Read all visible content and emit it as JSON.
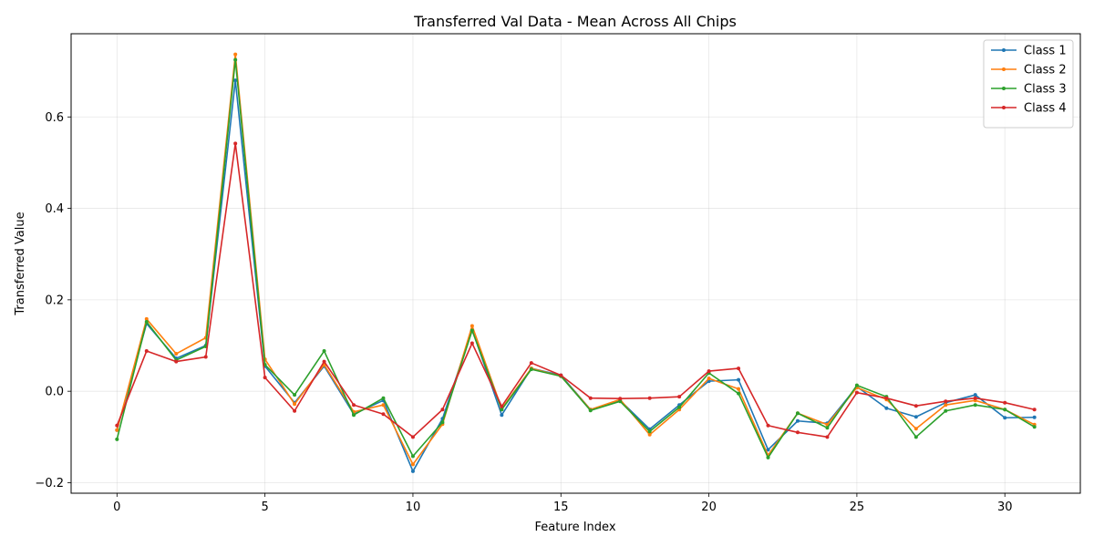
{
  "chart_data": {
    "type": "line",
    "title": "Transferred Val Data - Mean Across All Chips",
    "xlabel": "Feature Index",
    "ylabel": "Transferred Value",
    "xlim": [
      -1.55,
      32.55
    ],
    "ylim": [
      -0.223,
      0.782
    ],
    "xticks": [
      0,
      5,
      10,
      15,
      20,
      25,
      30
    ],
    "yticks": [
      -0.2,
      0.0,
      0.2,
      0.4,
      0.6
    ],
    "ytick_labels": [
      "−0.2",
      "0.0",
      "0.2",
      "0.4",
      "0.6"
    ],
    "grid": true,
    "legend_position": "top-right",
    "x": [
      0,
      1,
      2,
      3,
      4,
      5,
      6,
      7,
      8,
      9,
      10,
      11,
      12,
      13,
      14,
      15,
      16,
      17,
      18,
      19,
      20,
      21,
      22,
      23,
      24,
      25,
      26,
      27,
      28,
      29,
      30,
      31
    ],
    "series": [
      {
        "name": "Class 1",
        "color": "#1f77b4",
        "values": [
          -0.085,
          0.148,
          0.072,
          0.1,
          0.68,
          0.055,
          -0.025,
          0.055,
          -0.05,
          -0.02,
          -0.175,
          -0.06,
          0.135,
          -0.052,
          0.05,
          0.035,
          -0.04,
          -0.02,
          -0.083,
          -0.03,
          0.022,
          0.025,
          -0.128,
          -0.065,
          -0.07,
          0.01,
          -0.037,
          -0.056,
          -0.025,
          -0.008,
          -0.058,
          -0.057
        ]
      },
      {
        "name": "Class 2",
        "color": "#ff7f0e",
        "values": [
          -0.085,
          0.158,
          0.082,
          0.117,
          0.737,
          0.07,
          -0.028,
          0.058,
          -0.045,
          -0.03,
          -0.16,
          -0.072,
          0.143,
          -0.038,
          0.05,
          0.033,
          -0.04,
          -0.018,
          -0.095,
          -0.04,
          0.028,
          0.005,
          -0.14,
          -0.048,
          -0.073,
          0.008,
          -0.018,
          -0.082,
          -0.03,
          -0.02,
          -0.04,
          -0.073
        ]
      },
      {
        "name": "Class 3",
        "color": "#2ca02c",
        "values": [
          -0.105,
          0.152,
          0.068,
          0.098,
          0.725,
          0.058,
          -0.008,
          0.088,
          -0.052,
          -0.015,
          -0.142,
          -0.068,
          0.133,
          -0.04,
          0.048,
          0.033,
          -0.042,
          -0.022,
          -0.088,
          -0.035,
          0.04,
          -0.005,
          -0.145,
          -0.048,
          -0.08,
          0.013,
          -0.012,
          -0.1,
          -0.043,
          -0.03,
          -0.04,
          -0.078
        ]
      },
      {
        "name": "Class 4",
        "color": "#d62728",
        "values": [
          -0.075,
          0.088,
          0.065,
          0.075,
          0.542,
          0.03,
          -0.043,
          0.065,
          -0.03,
          -0.05,
          -0.1,
          -0.04,
          0.105,
          -0.033,
          0.062,
          0.035,
          -0.015,
          -0.016,
          -0.015,
          -0.012,
          0.044,
          0.05,
          -0.075,
          -0.09,
          -0.1,
          -0.003,
          -0.015,
          -0.032,
          -0.022,
          -0.015,
          -0.025,
          -0.04
        ]
      }
    ]
  }
}
